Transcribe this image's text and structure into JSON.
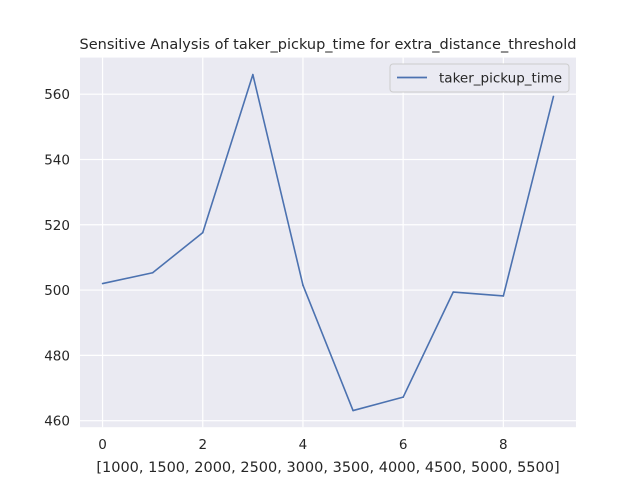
{
  "chart_data": {
    "type": "line",
    "title": "Sensitive Analysis of taker_pickup_time for extra_distance_threshold",
    "xlabel": "[1000, 1500, 2000, 2500, 3000, 3500, 4000, 4500, 5000, 5500]",
    "ylabel": "",
    "x": [
      0,
      1,
      2,
      3,
      4,
      5,
      6,
      7,
      8,
      9
    ],
    "series": [
      {
        "name": "taker_pickup_time",
        "color": "#4c72b0",
        "values": [
          502.0,
          505.3,
          517.6,
          566.0,
          501.5,
          463.1,
          467.2,
          499.4,
          498.2,
          559.3
        ]
      }
    ],
    "xlim": [
      -0.45,
      9.45
    ],
    "ylim": [
      458.0,
      571.2
    ],
    "xticks": [
      0,
      2,
      4,
      6,
      8
    ],
    "yticks": [
      460,
      480,
      500,
      520,
      540,
      560
    ],
    "grid": true,
    "legend": "top-right",
    "colors": {
      "axes_background": "#eaeaf2",
      "grid": "#ffffff",
      "text": "#262626"
    }
  }
}
